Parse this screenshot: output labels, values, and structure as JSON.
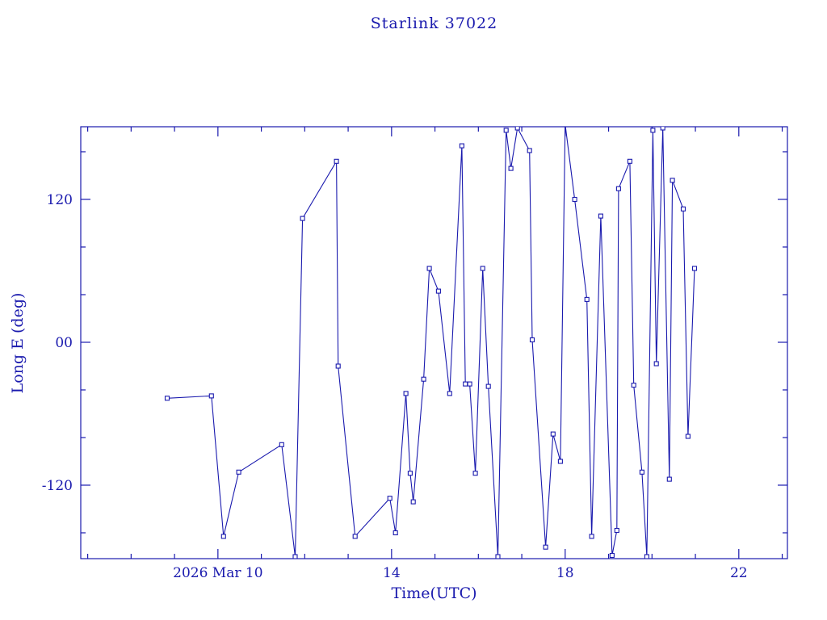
{
  "title": "Starlink 37022",
  "chart_data": {
    "type": "line",
    "title": "Starlink 37022",
    "xlabel": "Time(UTC)",
    "ylabel": "Long E (deg)",
    "xlim": [
      6.84,
      23.12
    ],
    "ylim": [
      -181.7,
      181.0
    ],
    "x_major_ticks": [
      10,
      14,
      18,
      22
    ],
    "x_major_labels": [
      "2026 Mar 10",
      "14",
      "18",
      "22"
    ],
    "x_minor_step": 1,
    "y_major_ticks": [
      -120,
      0,
      120
    ],
    "y_major_labels": [
      "-120",
      "00",
      "120"
    ],
    "y_minor_step": 40,
    "grid": false,
    "legend": "none",
    "line_color": "#1a1aae",
    "marker": "open-square",
    "background": "#ffffff",
    "series": [
      {
        "name": "Long E (deg)",
        "points": [
          [
            8.83,
            -47
          ],
          [
            9.85,
            -45
          ],
          [
            10.13,
            -163
          ],
          [
            10.48,
            -109
          ],
          [
            11.47,
            -86
          ],
          [
            11.78,
            -180
          ],
          [
            11.95,
            104
          ],
          [
            12.73,
            152
          ],
          [
            12.77,
            -20
          ],
          [
            13.16,
            -163
          ],
          [
            13.96,
            -131
          ],
          [
            14.09,
            -160
          ],
          [
            14.33,
            -43
          ],
          [
            14.43,
            -110
          ],
          [
            14.5,
            -134
          ],
          [
            14.74,
            -31
          ],
          [
            14.87,
            62
          ],
          [
            15.08,
            43
          ],
          [
            15.34,
            -43
          ],
          [
            15.62,
            165
          ],
          [
            15.7,
            -35
          ],
          [
            15.8,
            -35
          ],
          [
            15.93,
            -110
          ],
          [
            16.1,
            62
          ],
          [
            16.23,
            -37
          ],
          [
            16.45,
            -180
          ],
          [
            16.64,
            178
          ],
          [
            16.75,
            146
          ],
          [
            16.9,
            180
          ],
          [
            17.18,
            161
          ],
          [
            17.24,
            2
          ],
          [
            17.55,
            -172
          ],
          [
            17.72,
            -77
          ],
          [
            17.89,
            -100
          ],
          [
            18.0,
            183
          ],
          [
            18.22,
            120
          ],
          [
            18.5,
            36
          ],
          [
            18.61,
            -163
          ],
          [
            18.82,
            106
          ],
          [
            19.08,
            -179
          ],
          [
            19.19,
            -158
          ],
          [
            19.23,
            129
          ],
          [
            19.49,
            152
          ],
          [
            19.58,
            -36
          ],
          [
            19.77,
            -109
          ],
          [
            19.88,
            -180
          ],
          [
            20.02,
            178
          ],
          [
            20.1,
            -18
          ],
          [
            20.25,
            180
          ],
          [
            20.4,
            -115
          ],
          [
            20.47,
            136
          ],
          [
            20.72,
            112
          ],
          [
            20.83,
            -79
          ],
          [
            20.98,
            62
          ]
        ]
      }
    ]
  }
}
